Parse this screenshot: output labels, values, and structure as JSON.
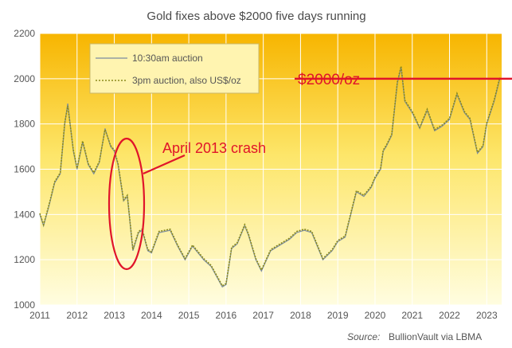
{
  "chart_data": {
    "type": "line",
    "title": "Gold fixes above $2000 five days running",
    "xlabel": "",
    "ylabel": "",
    "xlim": [
      2011,
      2023.4
    ],
    "ylim": [
      1000,
      2200
    ],
    "x_ticks": [
      "2011",
      "2012",
      "2013",
      "2014",
      "2015",
      "2016",
      "2017",
      "2018",
      "2019",
      "2020",
      "2021",
      "2022",
      "2023"
    ],
    "y_ticks": [
      "1000",
      "1200",
      "1400",
      "1600",
      "1800",
      "2000",
      "2200"
    ],
    "grid": true,
    "legend_position": "top-left",
    "series": [
      {
        "name": "10:30am auction",
        "x": [
          2011.0,
          2011.1,
          2011.25,
          2011.4,
          2011.55,
          2011.67,
          2011.75,
          2011.9,
          2012.0,
          2012.15,
          2012.3,
          2012.45,
          2012.6,
          2012.75,
          2012.9,
          2013.0,
          2013.1,
          2013.25,
          2013.35,
          2013.5,
          2013.65,
          2013.75,
          2013.9,
          2014.0,
          2014.2,
          2014.5,
          2014.7,
          2014.9,
          2015.1,
          2015.4,
          2015.6,
          2015.9,
          2016.0,
          2016.15,
          2016.3,
          2016.5,
          2016.6,
          2016.8,
          2016.95,
          2017.2,
          2017.5,
          2017.7,
          2017.9,
          2018.1,
          2018.3,
          2018.6,
          2018.85,
          2019.0,
          2019.2,
          2019.5,
          2019.7,
          2019.9,
          2020.0,
          2020.15,
          2020.22,
          2020.3,
          2020.45,
          2020.6,
          2020.7,
          2020.8,
          2021.0,
          2021.2,
          2021.4,
          2021.6,
          2021.8,
          2022.0,
          2022.2,
          2022.4,
          2022.55,
          2022.75,
          2022.9,
          2023.0,
          2023.2,
          2023.35
        ],
        "y": [
          1400,
          1350,
          1440,
          1540,
          1580,
          1800,
          1890,
          1680,
          1600,
          1720,
          1620,
          1580,
          1630,
          1780,
          1700,
          1680,
          1620,
          1460,
          1480,
          1240,
          1320,
          1330,
          1240,
          1230,
          1320,
          1330,
          1260,
          1200,
          1260,
          1200,
          1170,
          1080,
          1090,
          1250,
          1270,
          1350,
          1310,
          1200,
          1150,
          1240,
          1270,
          1290,
          1320,
          1330,
          1320,
          1200,
          1240,
          1280,
          1300,
          1500,
          1480,
          1520,
          1560,
          1600,
          1680,
          1700,
          1750,
          1980,
          2050,
          1900,
          1850,
          1780,
          1860,
          1770,
          1790,
          1820,
          1930,
          1850,
          1820,
          1670,
          1700,
          1800,
          1900,
          2000
        ],
        "color": "#7a8ba0"
      },
      {
        "name": "3pm auction, also US$/oz",
        "x": [
          2011.0,
          2011.1,
          2011.25,
          2011.4,
          2011.55,
          2011.67,
          2011.75,
          2011.9,
          2012.0,
          2012.15,
          2012.3,
          2012.45,
          2012.6,
          2012.75,
          2012.9,
          2013.0,
          2013.1,
          2013.25,
          2013.35,
          2013.5,
          2013.65,
          2013.75,
          2013.9,
          2014.0,
          2014.2,
          2014.5,
          2014.7,
          2014.9,
          2015.1,
          2015.4,
          2015.6,
          2015.9,
          2016.0,
          2016.15,
          2016.3,
          2016.5,
          2016.6,
          2016.8,
          2016.95,
          2017.2,
          2017.5,
          2017.7,
          2017.9,
          2018.1,
          2018.3,
          2018.6,
          2018.85,
          2019.0,
          2019.2,
          2019.5,
          2019.7,
          2019.9,
          2020.0,
          2020.15,
          2020.22,
          2020.3,
          2020.45,
          2020.6,
          2020.7,
          2020.8,
          2021.0,
          2021.2,
          2021.4,
          2021.6,
          2021.8,
          2022.0,
          2022.2,
          2022.4,
          2022.55,
          2022.75,
          2022.9,
          2023.0,
          2023.2,
          2023.35
        ],
        "y": [
          1405,
          1355,
          1445,
          1545,
          1585,
          1805,
          1880,
          1685,
          1605,
          1725,
          1625,
          1585,
          1635,
          1775,
          1705,
          1685,
          1625,
          1465,
          1485,
          1245,
          1325,
          1335,
          1245,
          1235,
          1325,
          1335,
          1265,
          1205,
          1265,
          1205,
          1175,
          1085,
          1095,
          1255,
          1275,
          1355,
          1315,
          1205,
          1155,
          1245,
          1275,
          1295,
          1325,
          1335,
          1325,
          1205,
          1245,
          1285,
          1305,
          1505,
          1485,
          1525,
          1565,
          1605,
          1685,
          1705,
          1755,
          1985,
          2055,
          1905,
          1855,
          1785,
          1865,
          1775,
          1795,
          1825,
          1935,
          1855,
          1825,
          1675,
          1705,
          1805,
          1905,
          2005
        ],
        "color": "#8a8a1a"
      }
    ],
    "annotations": [
      {
        "text": "April 2013 crash",
        "color": "#e0142a"
      },
      {
        "text": "$2000/oz",
        "color": "#e0142a",
        "y": 2000
      }
    ],
    "source_label": "Source:",
    "source_text": "BullionVault via LBMA",
    "background_colors": {
      "top": "#f7b500",
      "bottom": "#fffde0"
    }
  }
}
